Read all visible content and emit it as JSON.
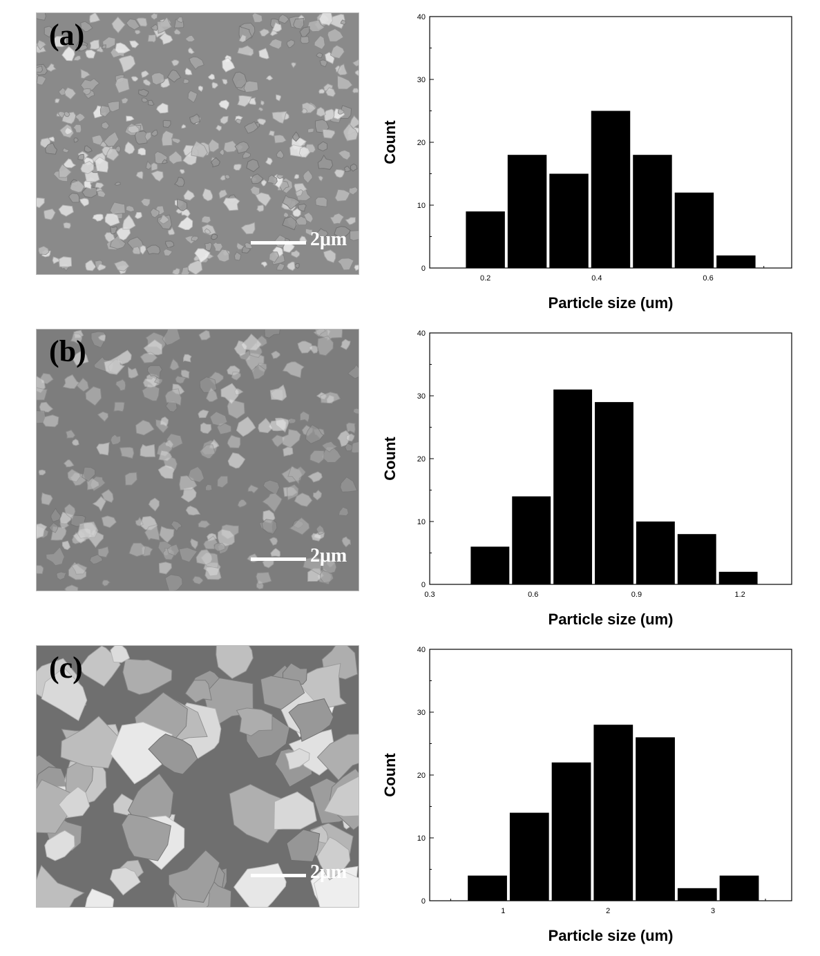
{
  "panels": [
    {
      "label": "(a)",
      "scale_bar": "2μm",
      "texture": {
        "bg": "#8a8a8a",
        "count": 380,
        "rmin": 4,
        "rmax": 13,
        "seed": 11,
        "spread": 0.9
      },
      "chart_data": {
        "type": "bar",
        "title": "",
        "xlabel": "Particle size (um)",
        "ylabel": "Count",
        "xlim": [
          0.1,
          0.75
        ],
        "ylim": [
          0,
          40
        ],
        "xticks": [
          "0.2",
          "0.4",
          "0.6"
        ],
        "xtick_values": [
          0.2,
          0.4,
          0.6
        ],
        "yticks": [
          "0",
          "10",
          "20",
          "30",
          "40"
        ],
        "bin_width": 0.075,
        "bins": [
          0.2,
          0.275,
          0.35,
          0.425,
          0.5,
          0.575,
          0.65
        ],
        "values": [
          9,
          18,
          15,
          25,
          18,
          12,
          2
        ]
      }
    },
    {
      "label": "(b)",
      "scale_bar": "2μm",
      "texture": {
        "bg": "#7d7d7d",
        "count": 220,
        "rmin": 6,
        "rmax": 16,
        "seed": 23,
        "spread": 0.6
      },
      "chart_data": {
        "type": "bar",
        "title": "",
        "xlabel": "Particle size (um)",
        "ylabel": "Count",
        "xlim": [
          0.3,
          1.35
        ],
        "ylim": [
          0,
          40
        ],
        "xticks": [
          "0.3",
          "0.6",
          "0.9",
          "1.2"
        ],
        "xtick_values": [
          0.3,
          0.6,
          0.9,
          1.2
        ],
        "yticks": [
          "0",
          "10",
          "20",
          "30",
          "40"
        ],
        "bin_width": 0.12,
        "bins": [
          0.475,
          0.595,
          0.715,
          0.835,
          0.955,
          1.075,
          1.195
        ],
        "values": [
          6,
          14,
          31,
          29,
          10,
          8,
          2
        ]
      }
    },
    {
      "label": "(c)",
      "scale_bar": "2μm",
      "texture": {
        "bg": "#6f6f6f",
        "count": 70,
        "rmin": 18,
        "rmax": 48,
        "seed": 37,
        "spread": 1.0
      },
      "chart_data": {
        "type": "bar",
        "title": "",
        "xlabel": "Particle size (um)",
        "ylabel": "Count",
        "xlim": [
          0.3,
          3.75
        ],
        "ylim": [
          0,
          40
        ],
        "xticks": [
          "1",
          "2",
          "3"
        ],
        "xtick_values": [
          1,
          2,
          3
        ],
        "yticks": [
          "0",
          "10",
          "20",
          "30",
          "40"
        ],
        "bin_width": 0.4,
        "bins": [
          0.85,
          1.25,
          1.65,
          2.05,
          2.45,
          2.85,
          3.25
        ],
        "values": [
          4,
          14,
          22,
          28,
          26,
          2,
          4
        ]
      }
    }
  ]
}
